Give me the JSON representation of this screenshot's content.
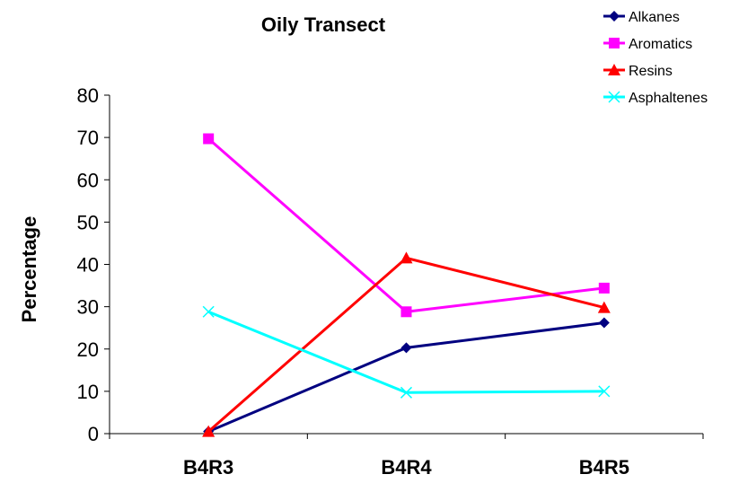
{
  "chart_data": {
    "type": "line",
    "title": "Oily Transect",
    "xlabel": "",
    "ylabel": "Percentage",
    "categories": [
      "B4R3",
      "B4R4",
      "B4R5"
    ],
    "ylim": [
      0,
      80
    ],
    "yticks": [
      0,
      10,
      20,
      30,
      40,
      50,
      60,
      70,
      80
    ],
    "grid": false,
    "legend_position": "top-right",
    "series": [
      {
        "name": "Alkanes",
        "values": [
          0.5,
          20.3,
          26.2
        ],
        "color": "#000080",
        "marker": "diamond"
      },
      {
        "name": "Aromatics",
        "values": [
          69.7,
          28.8,
          34.4
        ],
        "color": "#ff00ff",
        "marker": "square"
      },
      {
        "name": "Resins",
        "values": [
          0.5,
          41.5,
          29.8
        ],
        "color": "#ff0000",
        "marker": "triangle"
      },
      {
        "name": "Asphaltenes",
        "values": [
          28.8,
          9.7,
          10.0
        ],
        "color": "#00ffff",
        "marker": "x"
      }
    ]
  }
}
